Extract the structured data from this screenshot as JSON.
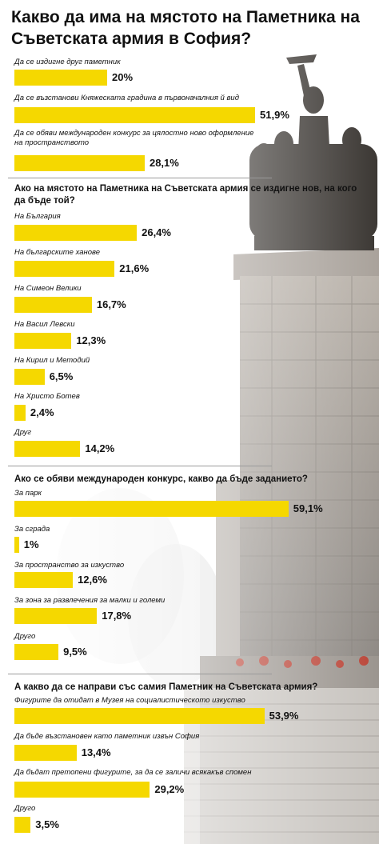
{
  "title": "Какво да има на мястото на Паметника на Съветската армия в София?",
  "colors": {
    "bar": "#f5d800",
    "text": "#111111",
    "separator": "#9a9a9a"
  },
  "background_icon": "monument-photo",
  "chart_data": [
    {
      "type": "bar",
      "orientation": "horizontal",
      "title": "",
      "categories": [
        "Да се издигне друг паметник",
        "Да се възстанови Княжеската градина в първоначалния й вид",
        "Да се обяви международен конкурс за цялостно ново оформление на пространството"
      ],
      "values": [
        20,
        51.9,
        28.1
      ],
      "value_labels": [
        "20%",
        "51,9%",
        "28,1%"
      ],
      "xlim": [
        0,
        60
      ]
    },
    {
      "type": "bar",
      "orientation": "horizontal",
      "title": "Ако на мястото на Паметника на Съветската армия се издигне нов, на кого да бъде той?",
      "categories": [
        "На България",
        "На българските ханове",
        "На Симеон Велики",
        "На Васил Левски",
        "На Кирил и Методий",
        "На Христо Ботев",
        "Друг"
      ],
      "values": [
        26.4,
        21.6,
        16.7,
        12.3,
        6.5,
        2.4,
        14.2
      ],
      "value_labels": [
        "26,4%",
        "21,6%",
        "16,7%",
        "12,3%",
        "6,5%",
        "2,4%",
        "14,2%"
      ],
      "xlim": [
        0,
        60
      ]
    },
    {
      "type": "bar",
      "orientation": "horizontal",
      "title": "Ако се обяви международен конкурс, какво да бъде заданието?",
      "categories": [
        "За парк",
        "За сграда",
        "За пространство за изкуство",
        "За зона за развлечения за малки и големи",
        "Друго"
      ],
      "values": [
        59.1,
        1,
        12.6,
        17.8,
        9.5
      ],
      "value_labels": [
        "59,1%",
        "1%",
        "12,6%",
        "17,8%",
        "9,5%"
      ],
      "xlim": [
        0,
        60
      ]
    },
    {
      "type": "bar",
      "orientation": "horizontal",
      "title": "А какво да се направи със самия Паметник на Съветската армия?",
      "categories": [
        "Фигурите да отидат в Музея на социалистическото изкуство",
        "Да бъде възстановен като паметник извън София",
        "Да бъдат претопени фигурите, за да се заличи всякакъв спомен",
        "Друго"
      ],
      "values": [
        53.9,
        13.4,
        29.2,
        3.5
      ],
      "value_labels": [
        "53,9%",
        "13,4%",
        "29,2%",
        "3,5%"
      ],
      "xlim": [
        0,
        60
      ]
    }
  ]
}
